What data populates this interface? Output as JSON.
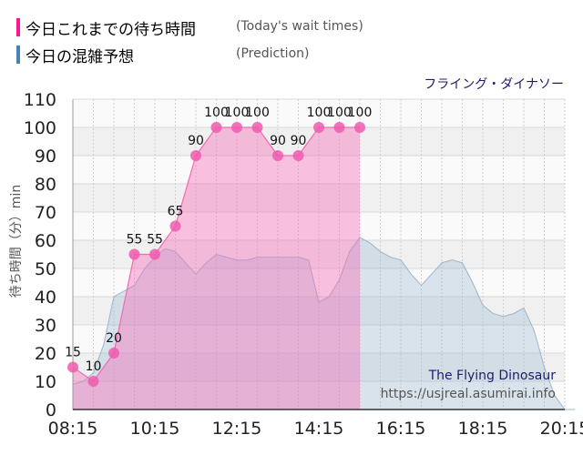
{
  "legend": {
    "actual": {
      "label": "今日これまでの待ち時間",
      "sub": "(Today's wait times)",
      "color": "#ff1493"
    },
    "prediction": {
      "label": "今日の混雑予想",
      "sub": "(Prediction)",
      "color": "#4682b4"
    }
  },
  "chart_data": {
    "type": "area",
    "title": "フライング・ダイナソー",
    "ylabel": "待ち時間（分）min",
    "xlabel": "",
    "ylim": [
      0,
      110
    ],
    "yticks": [
      "0",
      "10",
      "20",
      "30",
      "40",
      "50",
      "60",
      "70",
      "80",
      "90",
      "100",
      "110"
    ],
    "xticks": [
      "08:15",
      "10:15",
      "12:15",
      "14:15",
      "16:15",
      "18:15",
      "20:15"
    ],
    "grid": true,
    "watermark": {
      "line1": "The Flying Dinosaur",
      "line2": "https://usjreal.asumirai.info"
    },
    "series": [
      {
        "name": "今日これまでの待ち時間",
        "color": "#ff1493",
        "x": [
          "08:15",
          "08:45",
          "09:15",
          "09:45",
          "10:15",
          "10:45",
          "11:15",
          "11:45",
          "12:15",
          "12:45",
          "13:15",
          "13:45",
          "14:15",
          "14:45",
          "15:15"
        ],
        "values": [
          15,
          10,
          20,
          55,
          55,
          65,
          90,
          100,
          100,
          100,
          90,
          90,
          100,
          100,
          100
        ],
        "labels": [
          "15",
          "10",
          "20",
          "55",
          "55",
          "65",
          "90",
          "100",
          "100",
          "100",
          "90",
          "90",
          "100",
          "100",
          "100"
        ]
      },
      {
        "name": "今日の混雑予想",
        "color": "#4682b4",
        "x": [
          "08:15",
          "08:30",
          "08:45",
          "09:00",
          "09:15",
          "09:30",
          "09:45",
          "10:00",
          "10:15",
          "10:30",
          "10:45",
          "11:00",
          "11:15",
          "11:30",
          "11:45",
          "12:00",
          "12:15",
          "12:30",
          "12:45",
          "13:00",
          "13:15",
          "13:30",
          "13:45",
          "14:00",
          "14:15",
          "14:30",
          "14:45",
          "15:00",
          "15:15",
          "15:30",
          "15:45",
          "16:00",
          "16:15",
          "16:30",
          "16:45",
          "17:00",
          "17:15",
          "17:30",
          "17:45",
          "18:00",
          "18:15",
          "18:30",
          "18:45",
          "19:00",
          "19:15",
          "19:30",
          "19:45",
          "20:00",
          "20:15",
          "20:30"
        ],
        "values": [
          9,
          10,
          13,
          23,
          40,
          42,
          44,
          50,
          54,
          57,
          56,
          52,
          48,
          52,
          55,
          54,
          53,
          53,
          54,
          54,
          54,
          54,
          54,
          53,
          38,
          40,
          46,
          56,
          61,
          59,
          56,
          54,
          53,
          48,
          44,
          48,
          52,
          53,
          52,
          45,
          37,
          34,
          33,
          34,
          36,
          28,
          15,
          5,
          0,
          0
        ]
      }
    ]
  }
}
